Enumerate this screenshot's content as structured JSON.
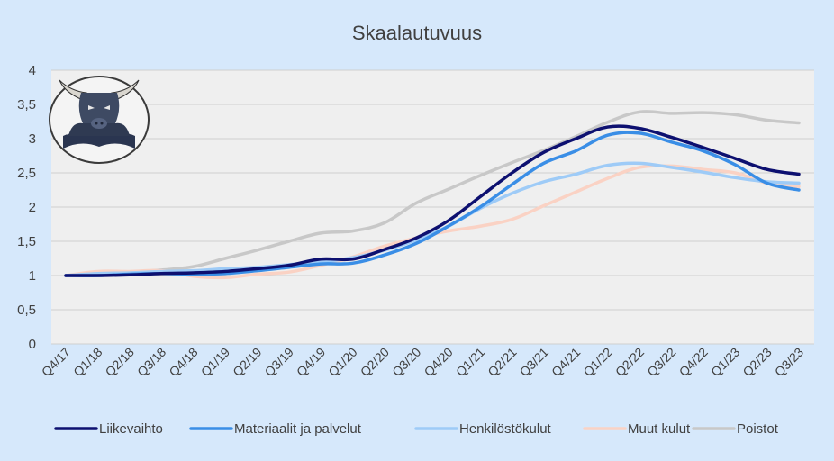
{
  "chart_data": {
    "type": "line",
    "title": "Skaalautuvuus",
    "xlabel": "",
    "ylabel": "",
    "ylim": [
      0,
      4
    ],
    "yticks": [
      "0",
      "0,5",
      "1",
      "1,5",
      "2",
      "2,5",
      "3",
      "3,5",
      "4"
    ],
    "grid": true,
    "legend_position": "bottom",
    "categories": [
      "Q4/17",
      "Q1/18",
      "Q2/18",
      "Q3/18",
      "Q4/18",
      "Q1/19",
      "Q2/19",
      "Q3/19",
      "Q4/19",
      "Q1/20",
      "Q2/20",
      "Q3/20",
      "Q4/20",
      "Q1/21",
      "Q2/21",
      "Q3/21",
      "Q4/21",
      "Q1/22",
      "Q2/22",
      "Q3/22",
      "Q4/22",
      "Q1/23",
      "Q2/23",
      "Q3/23"
    ],
    "series": [
      {
        "name": "Liikevaihto",
        "color": "#0d1070",
        "values": [
          1.0,
          1.0,
          1.01,
          1.03,
          1.04,
          1.06,
          1.1,
          1.15,
          1.24,
          1.24,
          1.38,
          1.55,
          1.8,
          2.15,
          2.5,
          2.8,
          3.0,
          3.17,
          3.15,
          3.02,
          2.87,
          2.71,
          2.55,
          2.48
        ]
      },
      {
        "name": "Materiaalit ja palvelut",
        "color": "#3a8ee6",
        "values": [
          1.0,
          1.0,
          1.02,
          1.03,
          1.02,
          1.03,
          1.07,
          1.12,
          1.17,
          1.18,
          1.3,
          1.47,
          1.72,
          2.0,
          2.33,
          2.64,
          2.82,
          3.05,
          3.08,
          2.95,
          2.82,
          2.62,
          2.35,
          2.25
        ]
      },
      {
        "name": "Henkilöstökulut",
        "color": "#9ecbf7",
        "values": [
          1.0,
          1.03,
          1.04,
          1.06,
          1.07,
          1.1,
          1.12,
          1.16,
          1.2,
          1.26,
          1.37,
          1.52,
          1.72,
          1.98,
          2.2,
          2.37,
          2.48,
          2.61,
          2.64,
          2.58,
          2.51,
          2.43,
          2.37,
          2.35
        ]
      },
      {
        "name": "Muut kulut",
        "color": "#fad2c4",
        "values": [
          1.0,
          1.06,
          1.06,
          1.07,
          0.99,
          0.97,
          1.02,
          1.05,
          1.15,
          1.27,
          1.43,
          1.55,
          1.65,
          1.72,
          1.82,
          2.02,
          2.22,
          2.42,
          2.58,
          2.6,
          2.55,
          2.5,
          2.35,
          2.3
        ]
      },
      {
        "name": "Poistot",
        "color": "#c8c8c8",
        "values": [
          1.0,
          1.03,
          1.05,
          1.08,
          1.13,
          1.25,
          1.37,
          1.5,
          1.62,
          1.65,
          1.77,
          2.06,
          2.26,
          2.46,
          2.65,
          2.83,
          3.03,
          3.24,
          3.39,
          3.37,
          3.38,
          3.35,
          3.27,
          3.23
        ]
      }
    ]
  },
  "logo": {
    "icon": "bull-reading-book-logo"
  }
}
